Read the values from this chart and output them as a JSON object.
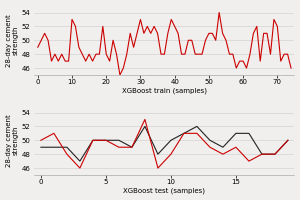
{
  "train_actual": [
    49,
    50,
    51,
    50,
    47,
    48,
    47,
    48,
    47,
    47,
    53,
    52,
    49,
    48,
    47,
    48,
    47,
    48,
    48,
    52,
    48,
    47,
    50,
    48,
    45,
    46,
    48,
    51,
    49,
    51,
    53,
    51,
    52,
    51,
    52,
    51,
    48,
    48,
    51,
    53,
    52,
    51,
    48,
    48,
    50,
    50,
    48,
    48,
    48,
    50,
    51,
    51,
    50,
    54,
    51,
    50,
    48,
    48,
    46,
    47,
    47,
    46,
    48,
    51,
    52,
    47,
    51,
    51,
    48,
    53,
    52,
    47,
    48,
    48,
    46
  ],
  "test_actual": [
    50,
    51,
    48,
    46,
    50,
    50,
    49,
    49,
    53,
    46,
    48,
    51,
    51,
    49,
    48,
    49,
    47,
    48,
    48,
    50
  ],
  "test_predicted": [
    49,
    49,
    49,
    47,
    50,
    50,
    50,
    49,
    52,
    48,
    50,
    51,
    52,
    50,
    49,
    51,
    51,
    48,
    48,
    50
  ],
  "train_xlabel": "XGBoost train (samples)",
  "test_xlabel": "XGBoost test (samples)",
  "ylabel": "28-day cement\nstrength",
  "train_ylim": [
    45.0,
    55.0
  ],
  "test_ylim": [
    45.0,
    55.0
  ],
  "train_yticks": [
    46,
    48,
    50,
    52,
    54
  ],
  "test_yticks": [
    46,
    48,
    50,
    52,
    54
  ],
  "train_xticks": [
    0,
    10,
    20,
    30,
    40,
    50,
    60,
    70
  ],
  "test_xticks": [
    0,
    5,
    10,
    15
  ],
  "actual_color": "#cc0000",
  "predicted_color": "#222222",
  "background_color": "#f0efed",
  "grid_color": "#d8d8d8",
  "line_width": 0.8,
  "font_size": 5.0
}
